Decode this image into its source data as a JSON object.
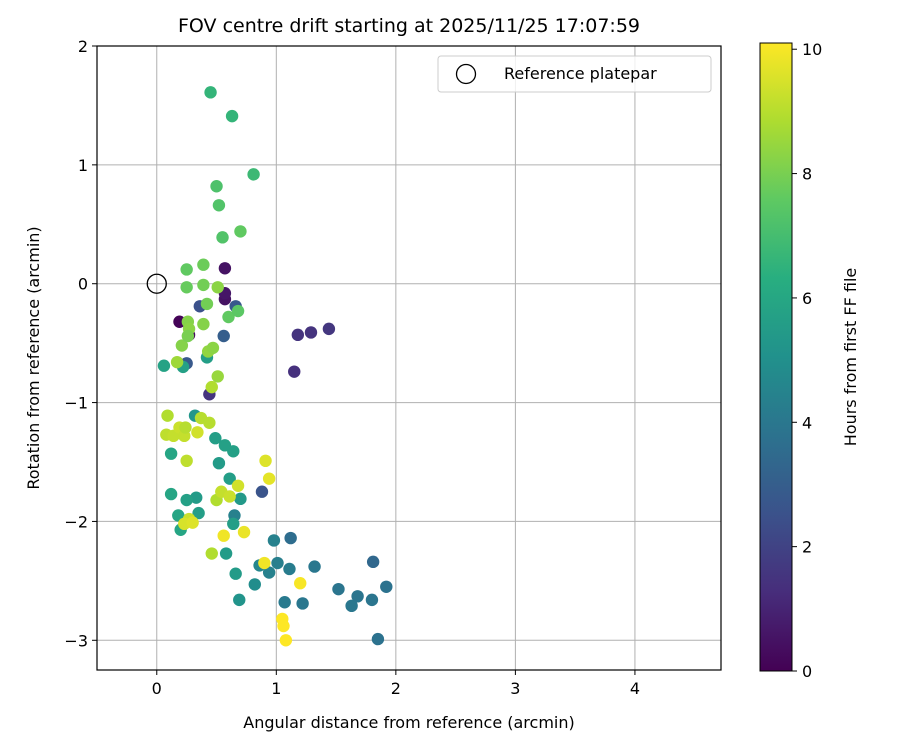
{
  "chart_data": {
    "type": "scatter",
    "title": "FOV centre drift starting at 2025/11/25 17:07:59",
    "xlabel": "Angular distance from reference (arcmin)",
    "ylabel": "Rotation from reference (arcmin)",
    "xlim": [
      -0.5,
      4.72
    ],
    "ylim": [
      -3.25,
      2.0
    ],
    "xticks": [
      0,
      1,
      2,
      3,
      4
    ],
    "yticks": [
      -3,
      -2,
      -1,
      0,
      1,
      2
    ],
    "grid": true,
    "legend": {
      "label": "Reference platepar",
      "position": "top-right"
    },
    "reference_point": {
      "x": 0,
      "y": 0
    },
    "colorbar": {
      "label": "Hours from first FF file",
      "range": [
        0,
        10.1
      ],
      "ticks": [
        0,
        2,
        4,
        6,
        8,
        10
      ],
      "colormap": "viridis"
    },
    "points": [
      {
        "x": 0.19,
        "y": -0.32,
        "h": 0.1
      },
      {
        "x": 0.27,
        "y": -0.43,
        "h": 0.3
      },
      {
        "x": 0.57,
        "y": -0.13,
        "h": 0.5
      },
      {
        "x": 0.57,
        "y": -0.08,
        "h": 0.6
      },
      {
        "x": 0.57,
        "y": 0.13,
        "h": 0.5
      },
      {
        "x": 1.15,
        "y": -0.74,
        "h": 1.4
      },
      {
        "x": 1.18,
        "y": -0.43,
        "h": 1.5
      },
      {
        "x": 1.29,
        "y": -0.41,
        "h": 1.5
      },
      {
        "x": 1.44,
        "y": -0.38,
        "h": 1.6
      },
      {
        "x": 0.44,
        "y": -0.93,
        "h": 1.5
      },
      {
        "x": 0.88,
        "y": -1.75,
        "h": 2.6
      },
      {
        "x": 0.36,
        "y": -0.19,
        "h": 2.5
      },
      {
        "x": 0.25,
        "y": -0.67,
        "h": 2.8
      },
      {
        "x": 0.56,
        "y": -0.44,
        "h": 3.0
      },
      {
        "x": 0.66,
        "y": -0.19,
        "h": 2.8
      },
      {
        "x": 1.12,
        "y": -2.14,
        "h": 3.6
      },
      {
        "x": 1.81,
        "y": -2.34,
        "h": 3.4
      },
      {
        "x": 1.85,
        "y": -2.99,
        "h": 3.8
      },
      {
        "x": 1.92,
        "y": -2.55,
        "h": 3.8
      },
      {
        "x": 1.8,
        "y": -2.66,
        "h": 3.9
      },
      {
        "x": 1.68,
        "y": -2.63,
        "h": 3.9
      },
      {
        "x": 1.63,
        "y": -2.71,
        "h": 4.0
      },
      {
        "x": 1.52,
        "y": -2.57,
        "h": 3.9
      },
      {
        "x": 1.32,
        "y": -2.38,
        "h": 4.0
      },
      {
        "x": 1.22,
        "y": -2.69,
        "h": 4.0
      },
      {
        "x": 1.07,
        "y": -2.68,
        "h": 4.1
      },
      {
        "x": 1.11,
        "y": -2.4,
        "h": 4.2
      },
      {
        "x": 1.01,
        "y": -2.35,
        "h": 4.3
      },
      {
        "x": 0.94,
        "y": -2.43,
        "h": 4.4
      },
      {
        "x": 0.98,
        "y": -2.16,
        "h": 4.4
      },
      {
        "x": 0.86,
        "y": -2.37,
        "h": 4.6
      },
      {
        "x": 0.82,
        "y": -2.53,
        "h": 4.9
      },
      {
        "x": 0.65,
        "y": -1.95,
        "h": 4.4
      },
      {
        "x": 0.69,
        "y": -2.66,
        "h": 5.2
      },
      {
        "x": 0.66,
        "y": -2.44,
        "h": 5.5
      },
      {
        "x": 0.58,
        "y": -2.27,
        "h": 5.5
      },
      {
        "x": 0.64,
        "y": -2.02,
        "h": 5.6
      },
      {
        "x": 0.7,
        "y": -1.81,
        "h": 5.4
      },
      {
        "x": 0.61,
        "y": -1.64,
        "h": 5.6
      },
      {
        "x": 0.52,
        "y": -1.51,
        "h": 5.5
      },
      {
        "x": 0.57,
        "y": -1.36,
        "h": 5.7
      },
      {
        "x": 0.64,
        "y": -1.41,
        "h": 5.7
      },
      {
        "x": 0.49,
        "y": -1.3,
        "h": 5.6
      },
      {
        "x": 0.32,
        "y": -1.11,
        "h": 5.3
      },
      {
        "x": 0.35,
        "y": -1.93,
        "h": 5.6
      },
      {
        "x": 0.33,
        "y": -1.8,
        "h": 5.5
      },
      {
        "x": 0.25,
        "y": -1.82,
        "h": 5.7
      },
      {
        "x": 0.12,
        "y": -1.77,
        "h": 5.9
      },
      {
        "x": 0.18,
        "y": -1.95,
        "h": 5.9
      },
      {
        "x": 0.2,
        "y": -2.07,
        "h": 5.9
      },
      {
        "x": 0.12,
        "y": -1.43,
        "h": 5.9
      },
      {
        "x": 0.06,
        "y": -0.69,
        "h": 5.8
      },
      {
        "x": 0.22,
        "y": -0.7,
        "h": 5.7
      },
      {
        "x": 0.42,
        "y": -0.62,
        "h": 5.6
      },
      {
        "x": 0.45,
        "y": 1.61,
        "h": 6.6
      },
      {
        "x": 0.63,
        "y": 1.41,
        "h": 6.6
      },
      {
        "x": 0.81,
        "y": 0.92,
        "h": 6.8
      },
      {
        "x": 0.5,
        "y": 0.82,
        "h": 7.2
      },
      {
        "x": 0.52,
        "y": 0.66,
        "h": 7.3
      },
      {
        "x": 0.55,
        "y": 0.39,
        "h": 7.3
      },
      {
        "x": 0.7,
        "y": 0.44,
        "h": 7.6
      },
      {
        "x": 0.25,
        "y": 0.12,
        "h": 7.6
      },
      {
        "x": 0.39,
        "y": 0.16,
        "h": 7.8
      },
      {
        "x": 0.25,
        "y": -0.03,
        "h": 7.7
      },
      {
        "x": 0.39,
        "y": -0.01,
        "h": 7.9
      },
      {
        "x": 0.42,
        "y": -0.17,
        "h": 7.9
      },
      {
        "x": 0.6,
        "y": -0.28,
        "h": 7.6
      },
      {
        "x": 0.68,
        "y": -0.23,
        "h": 7.5
      },
      {
        "x": 0.51,
        "y": -0.03,
        "h": 8.3
      },
      {
        "x": 0.26,
        "y": -0.32,
        "h": 8.2
      },
      {
        "x": 0.27,
        "y": -0.38,
        "h": 8.3
      },
      {
        "x": 0.39,
        "y": -0.34,
        "h": 8.2
      },
      {
        "x": 0.21,
        "y": -0.52,
        "h": 8.2
      },
      {
        "x": 0.26,
        "y": -0.44,
        "h": 8.0
      },
      {
        "x": 0.43,
        "y": -0.57,
        "h": 8.4
      },
      {
        "x": 0.47,
        "y": -0.54,
        "h": 8.3
      },
      {
        "x": 0.17,
        "y": -0.66,
        "h": 8.6
      },
      {
        "x": 0.51,
        "y": -0.78,
        "h": 8.5
      },
      {
        "x": 0.46,
        "y": -0.87,
        "h": 8.9
      },
      {
        "x": 0.09,
        "y": -1.11,
        "h": 8.9
      },
      {
        "x": 0.37,
        "y": -1.13,
        "h": 9.0
      },
      {
        "x": 0.44,
        "y": -1.17,
        "h": 9.0
      },
      {
        "x": 0.08,
        "y": -1.27,
        "h": 9.1
      },
      {
        "x": 0.14,
        "y": -1.28,
        "h": 9.2
      },
      {
        "x": 0.19,
        "y": -1.21,
        "h": 9.3
      },
      {
        "x": 0.23,
        "y": -1.28,
        "h": 9.2
      },
      {
        "x": 0.24,
        "y": -1.21,
        "h": 9.0
      },
      {
        "x": 0.34,
        "y": -1.25,
        "h": 9.4
      },
      {
        "x": 0.25,
        "y": -1.49,
        "h": 9.1
      },
      {
        "x": 0.5,
        "y": -1.82,
        "h": 8.9
      },
      {
        "x": 0.54,
        "y": -1.75,
        "h": 9.2
      },
      {
        "x": 0.61,
        "y": -1.79,
        "h": 9.3
      },
      {
        "x": 0.68,
        "y": -1.7,
        "h": 9.4
      },
      {
        "x": 0.46,
        "y": -2.27,
        "h": 8.9
      },
      {
        "x": 0.27,
        "y": -1.98,
        "h": 9.3
      },
      {
        "x": 0.23,
        "y": -2.02,
        "h": 9.5
      },
      {
        "x": 0.3,
        "y": -2.01,
        "h": 9.6
      },
      {
        "x": 0.91,
        "y": -1.49,
        "h": 9.6
      },
      {
        "x": 0.94,
        "y": -1.64,
        "h": 9.7
      },
      {
        "x": 0.73,
        "y": -2.09,
        "h": 9.8
      },
      {
        "x": 0.56,
        "y": -2.12,
        "h": 9.9
      },
      {
        "x": 0.9,
        "y": -2.35,
        "h": 9.9
      },
      {
        "x": 1.2,
        "y": -2.52,
        "h": 10.0
      },
      {
        "x": 1.05,
        "y": -2.82,
        "h": 10.1
      },
      {
        "x": 1.06,
        "y": -2.88,
        "h": 10.1
      },
      {
        "x": 1.08,
        "y": -3.0,
        "h": 10.1
      }
    ]
  }
}
